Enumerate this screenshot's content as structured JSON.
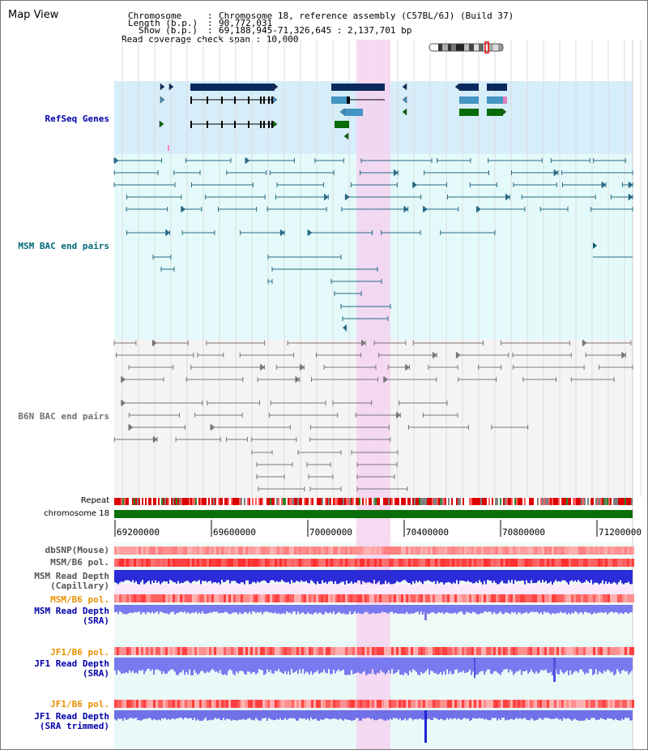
{
  "view": {
    "title": "Map View"
  },
  "header": {
    "rows": [
      {
        "key": "Chromosome",
        "value": "Chromosome 18, reference assembly (C57BL/6J) (Build 37)"
      },
      {
        "key": "Length (b.p.)",
        "value": "90,772,031"
      },
      {
        "key": "Show (b.p.)",
        "value": "69,188,945-71,326,645 : 2,137,701 bp"
      }
    ],
    "coverage_span": "Read coverage check span : 10,000",
    "sep": ":"
  },
  "tracks": {
    "refseq": "RefSeq Genes",
    "msm_bac": "MSM BAC end pairs",
    "b6n_bac": "B6N BAC end pairs",
    "repeat": "Repeat",
    "chromosome": "chromosome 18",
    "dbsnp": "dbSNP(Mouse)",
    "msm_b6_pol_1": "MSM/B6 pol.",
    "msm_depth_cap_1": "MSM Read Depth",
    "msm_depth_cap_2": "(Capillary)",
    "msm_b6_pol_2": "MSM/B6 pol.",
    "msm_depth_sra_1": "MSM Read Depth",
    "msm_depth_sra_2": "(SRA)",
    "jf1_pol_1": "JF1/B6 pol.",
    "jf1_depth_sra_1": "JF1 Read Depth",
    "jf1_depth_sra_2": "(SRA)",
    "jf1_pol_2": "JF1/B6 pol.",
    "jf1_depth_trim_1": "JF1 Read Depth",
    "jf1_depth_trim_2": "(SRA trimmed)"
  },
  "axis": {
    "ticks": [
      "69200000",
      "69600000",
      "70000000",
      "70400000",
      "70800000",
      "71200000"
    ]
  },
  "colors": {
    "refseq_bg": "#d6eefa",
    "msm_bg": "#e4fafa",
    "b6n_bg": "#f4f4f4",
    "highlight": "#f5d2f0",
    "gene_dark": "#0a2a5e",
    "gene_mid": "#4494c4",
    "gene_green": "#076b07",
    "msm_line": "#2a6a86",
    "b6n_line": "#777777",
    "depth_blue": "#2b2bd8",
    "depth_light": "#7a7af0",
    "pol_red": "#ff5050",
    "label_blue": "#0000aa",
    "label_orange": "#e89000",
    "label_teal": "#006a7a"
  }
}
